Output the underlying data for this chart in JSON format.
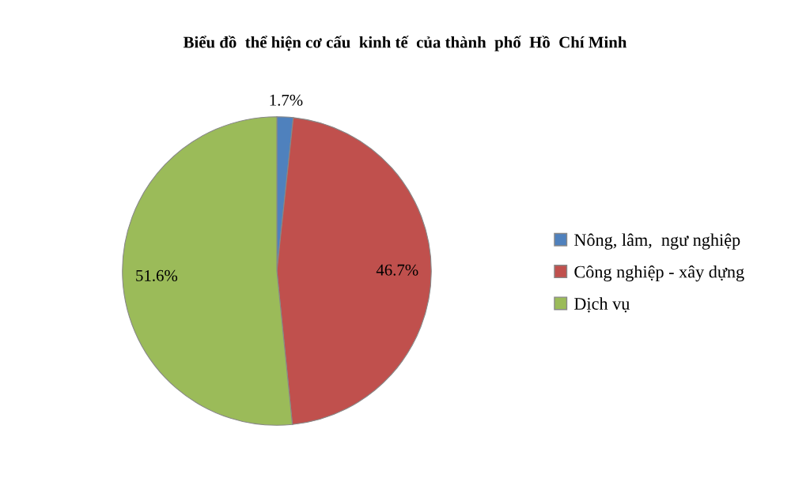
{
  "chart_data": {
    "type": "pie",
    "title": "Biểu đồ  thể hiện cơ cấu  kinh tế  của thành  phố  Hồ  Chí Minh",
    "categories": [
      "Nông, lâm,  ngư nghiệp",
      "Công nghiệp - xây dựng",
      "Dịch vụ"
    ],
    "values": [
      1.7,
      46.7,
      51.6
    ],
    "colors": [
      "#4f81bd",
      "#c0504d",
      "#9bbb59"
    ],
    "value_labels": [
      "1.7%",
      "46.7%",
      "51.6%"
    ],
    "legend": "right"
  }
}
